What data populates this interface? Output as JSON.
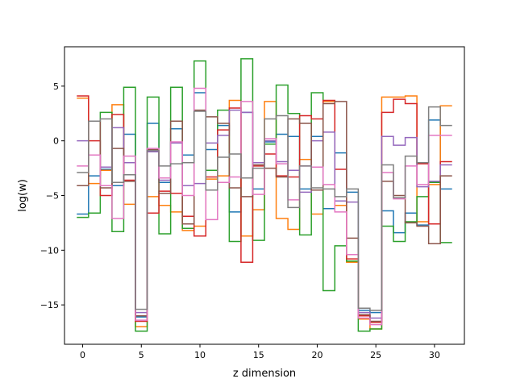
{
  "chart_data": {
    "type": "line",
    "drawstyle": "steps",
    "title": "",
    "xlabel": "z dimension",
    "ylabel": "log(w)",
    "xlim": [
      -1.55,
      32.55
    ],
    "ylim": [
      -18.6,
      8.6
    ],
    "x_ticks": [
      0,
      5,
      10,
      15,
      20,
      25,
      30
    ],
    "y_ticks": [
      -15,
      -10,
      -5,
      0,
      5
    ],
    "x_tick_labels": [
      "0",
      "5",
      "10",
      "15",
      "20",
      "25",
      "30"
    ],
    "y_tick_labels": [
      "−15",
      "−10",
      "−5",
      "0",
      "5"
    ],
    "grid": false,
    "legend": "none",
    "x": [
      0,
      1,
      2,
      3,
      4,
      5,
      6,
      7,
      8,
      9,
      10,
      11,
      12,
      13,
      14,
      15,
      16,
      17,
      18,
      19,
      20,
      21,
      22,
      23,
      24,
      25,
      26,
      27,
      28,
      29,
      30,
      31
    ],
    "series": [
      {
        "color": "#1f77b4",
        "values": [
          -6.7,
          -3.2,
          -2.6,
          -4.1,
          0.6,
          -16.1,
          1.6,
          -3.8,
          1.1,
          -1.3,
          4.4,
          -0.8,
          1.4,
          -6.5,
          2.6,
          -4.4,
          -0.1,
          0.6,
          0.4,
          -4.4,
          0.4,
          -6.2,
          -1.1,
          -4.7,
          -15.5,
          -15.7,
          -6.4,
          -8.4,
          -6.6,
          -7.7,
          1.9,
          -4.4
        ]
      },
      {
        "color": "#ff7f0e",
        "values": [
          3.9,
          -3.9,
          -2.7,
          3.3,
          -5.8,
          -17.0,
          -5.1,
          -5.9,
          -6.5,
          -8.2,
          -7.8,
          -3.5,
          -3.2,
          3.7,
          -8.7,
          -6.3,
          3.6,
          -7.1,
          -8.1,
          -1.7,
          -6.7,
          3.6,
          -5.9,
          -11.1,
          -16.3,
          -17.2,
          4.0,
          4.0,
          4.1,
          -7.4,
          -4.0,
          3.2
        ]
      },
      {
        "color": "#2ca02c",
        "values": [
          -7.0,
          -6.6,
          2.6,
          -8.3,
          4.9,
          -17.4,
          4.0,
          -8.5,
          4.9,
          -8.0,
          7.3,
          -2.7,
          2.8,
          -9.2,
          7.5,
          -9.1,
          -0.3,
          5.1,
          2.5,
          -8.6,
          4.4,
          -13.7,
          -9.6,
          -11.0,
          -17.4,
          -17.2,
          -7.8,
          -9.2,
          -7.4,
          -5.1,
          -3.8,
          -9.3
        ]
      },
      {
        "color": "#d62728",
        "values": [
          4.1,
          0.0,
          -5.0,
          2.4,
          -3.6,
          -16.5,
          -6.6,
          -4.6,
          -4.8,
          -6.9,
          -8.7,
          -3.3,
          1.0,
          3.0,
          -11.1,
          -2.3,
          -1.2,
          -3.2,
          -3.3,
          2.3,
          2.0,
          3.7,
          -2.6,
          -10.8,
          -16.0,
          -16.6,
          2.6,
          3.8,
          3.4,
          -2.1,
          -7.6,
          -1.9
        ]
      },
      {
        "color": "#9467bd",
        "values": [
          0.0,
          -1.3,
          -2.4,
          1.2,
          -2.0,
          -15.7,
          -1.0,
          -3.6,
          -0.2,
          -4.1,
          -3.9,
          -0.2,
          0.5,
          2.8,
          2.6,
          -2.0,
          0.0,
          -1.9,
          -2.7,
          -4.7,
          0.0,
          0.8,
          -5.5,
          -5.6,
          -15.7,
          -16.2,
          0.4,
          -0.4,
          0.3,
          -4.2,
          -3.7,
          -2.2
        ]
      },
      {
        "color": "#8c564b",
        "values": [
          -4.1,
          1.8,
          -4.3,
          -0.7,
          -3.7,
          -16.0,
          -0.8,
          -4.8,
          1.8,
          -7.6,
          2.8,
          2.2,
          1.6,
          -4.3,
          -5.1,
          -2.2,
          -2.5,
          -3.3,
          2.0,
          1.6,
          -4.5,
          3.4,
          3.6,
          -8.9,
          -15.9,
          -16.5,
          -3.7,
          -5.0,
          -7.5,
          -7.8,
          -9.4,
          -3.2
        ]
      },
      {
        "color": "#e377c2",
        "values": [
          -2.3,
          -1.3,
          -4.1,
          -7.1,
          -1.4,
          -16.4,
          -0.7,
          -3.4,
          -0.1,
          -5.0,
          4.8,
          -7.2,
          -3.8,
          -3.3,
          3.6,
          -4.9,
          0.2,
          -2.1,
          -5.4,
          -2.3,
          -2.4,
          -4.0,
          -6.5,
          -10.4,
          -16.2,
          -16.8,
          -2.9,
          -5.3,
          -2.3,
          -4.0,
          0.5,
          0.5
        ]
      },
      {
        "color": "#7f7f7f",
        "values": [
          -2.9,
          1.8,
          2.0,
          -3.8,
          -3.1,
          -15.4,
          -0.9,
          -2.3,
          -2.1,
          -2.0,
          2.7,
          -4.5,
          -1.5,
          -1.2,
          -3.4,
          -2.5,
          2.0,
          2.3,
          -6.1,
          -2.3,
          -4.3,
          -4.4,
          -5.1,
          -4.4,
          -15.3,
          -15.5,
          -2.2,
          -5.2,
          -1.4,
          -2.0,
          3.1,
          1.4
        ]
      }
    ]
  }
}
